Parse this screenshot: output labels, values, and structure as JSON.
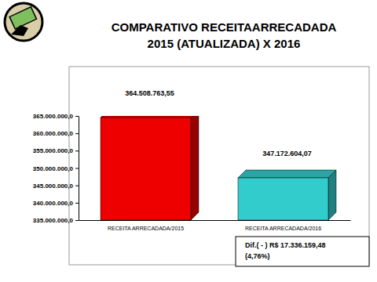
{
  "chart_data": {
    "type": "bar",
    "title": "COMPARATIVO RECEITAARRECADADA",
    "subtitle": "2015 (ATUALIZADA) X 2016",
    "categories": [
      "RECEITA ARRECADADA/2015",
      "RECEITA ARRECADADA/2016"
    ],
    "values": [
      364508763.55,
      347172604.07
    ],
    "value_labels": [
      "364.508.763,55",
      "347.172.604,07"
    ],
    "colors": [
      "#ee0000",
      "#33cccc"
    ],
    "ylim": [
      335000000,
      365000000
    ],
    "yticks": [
      {
        "value": 335000000,
        "label": "335.000.000,0"
      },
      {
        "value": 340000000,
        "label": "340.000.000,0"
      },
      {
        "value": 345000000,
        "label": "345.000.000,0"
      },
      {
        "value": 350000000,
        "label": "350.000.000,0"
      },
      {
        "value": 355000000,
        "label": "355.000.000,0"
      },
      {
        "value": 360000000,
        "label": "360.000.000,0"
      },
      {
        "value": 365000000,
        "label": "365.000.000,0"
      }
    ],
    "annotations": [
      "Dif.( - ) R$ 17.336.159,48",
      "(4,76%)"
    ],
    "grid": false,
    "data_labels": true
  }
}
